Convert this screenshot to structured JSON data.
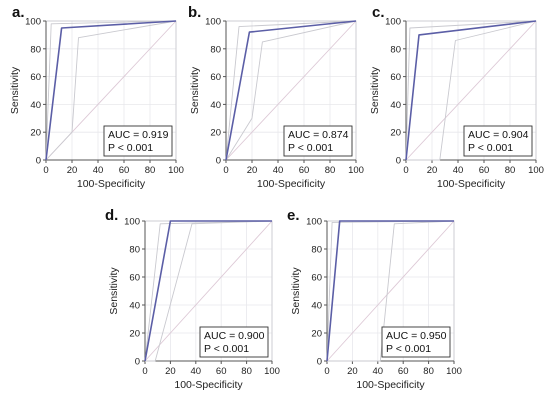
{
  "chart_data": [
    {
      "panel": "a.",
      "type": "line",
      "xlabel": "100-Specificity",
      "ylabel": "Sensitivity",
      "xlim": [
        0,
        100
      ],
      "ylim": [
        0,
        100
      ],
      "x_ticks": [
        "0",
        "20",
        "40",
        "60",
        "80",
        "100"
      ],
      "y_ticks": [
        "0",
        "20",
        "40",
        "60",
        "80",
        "100"
      ],
      "series": [
        {
          "role": "roc",
          "color": "#5b5ea6",
          "points": [
            [
              0,
              0
            ],
            [
              12,
              95
            ],
            [
              100,
              100
            ]
          ]
        },
        {
          "role": "ci-upper",
          "color": "#c9c9cf",
          "points": [
            [
              0,
              0
            ],
            [
              4,
              98
            ],
            [
              100,
              100
            ]
          ]
        },
        {
          "role": "ci-lower",
          "color": "#c9c9cf",
          "points": [
            [
              0,
              0
            ],
            [
              20,
              20
            ],
            [
              25,
              88
            ],
            [
              100,
              100
            ]
          ]
        },
        {
          "role": "reference",
          "color": "#ddc9d6",
          "points": [
            [
              0,
              0
            ],
            [
              100,
              100
            ]
          ]
        }
      ],
      "annotation": [
        "AUC = 0.919",
        "P < 0.001"
      ],
      "grid": true
    },
    {
      "panel": "b.",
      "type": "line",
      "xlabel": "100-Specificity",
      "ylabel": "Sensitivity",
      "xlim": [
        0,
        100
      ],
      "ylim": [
        0,
        100
      ],
      "x_ticks": [
        "0",
        "20",
        "40",
        "60",
        "80",
        "100"
      ],
      "y_ticks": [
        "0",
        "20",
        "40",
        "60",
        "80",
        "100"
      ],
      "series": [
        {
          "role": "roc",
          "color": "#5b5ea6",
          "points": [
            [
              0,
              0
            ],
            [
              18,
              92
            ],
            [
              100,
              100
            ]
          ]
        },
        {
          "role": "ci-upper",
          "color": "#c9c9cf",
          "points": [
            [
              0,
              0
            ],
            [
              10,
              96
            ],
            [
              100,
              100
            ]
          ]
        },
        {
          "role": "ci-lower",
          "color": "#c9c9cf",
          "points": [
            [
              0,
              0
            ],
            [
              20,
              30
            ],
            [
              28,
              85
            ],
            [
              100,
              100
            ]
          ]
        },
        {
          "role": "reference",
          "color": "#ddc9d6",
          "points": [
            [
              0,
              0
            ],
            [
              100,
              100
            ]
          ]
        }
      ],
      "annotation": [
        "AUC = 0.874",
        "P < 0.001"
      ],
      "grid": true
    },
    {
      "panel": "c.",
      "type": "line",
      "xlabel": "100-Specificity",
      "ylabel": "Sensitivity",
      "xlim": [
        0,
        100
      ],
      "ylim": [
        0,
        100
      ],
      "x_ticks": [
        "0",
        "20",
        "40",
        "60",
        "80",
        "100"
      ],
      "y_ticks": [
        "0",
        "20",
        "40",
        "60",
        "80",
        "100"
      ],
      "series": [
        {
          "role": "roc",
          "color": "#5b5ea6",
          "points": [
            [
              0,
              0
            ],
            [
              10,
              90
            ],
            [
              100,
              100
            ]
          ]
        },
        {
          "role": "ci-upper",
          "color": "#c9c9cf",
          "points": [
            [
              0,
              0
            ],
            [
              3,
              95
            ],
            [
              100,
              100
            ]
          ]
        },
        {
          "role": "ci-lower",
          "color": "#c9c9cf",
          "points": [
            [
              0,
              0
            ],
            [
              26,
              0
            ],
            [
              38,
              86
            ],
            [
              100,
              100
            ]
          ]
        },
        {
          "role": "reference",
          "color": "#ddc9d6",
          "points": [
            [
              0,
              0
            ],
            [
              100,
              100
            ]
          ]
        }
      ],
      "annotation": [
        "AUC = 0.904",
        "P < 0.001"
      ],
      "grid": true
    },
    {
      "panel": "d.",
      "type": "line",
      "xlabel": "100-Specificity",
      "ylabel": "Sensitivity",
      "xlim": [
        0,
        100
      ],
      "ylim": [
        0,
        100
      ],
      "x_ticks": [
        "0",
        "20",
        "40",
        "60",
        "80",
        "100"
      ],
      "y_ticks": [
        "0",
        "20",
        "40",
        "60",
        "80",
        "100"
      ],
      "series": [
        {
          "role": "roc",
          "color": "#5b5ea6",
          "points": [
            [
              0,
              0
            ],
            [
              20,
              100
            ],
            [
              100,
              100
            ]
          ]
        },
        {
          "role": "ci-upper",
          "color": "#c9c9cf",
          "points": [
            [
              0,
              0
            ],
            [
              12,
              98
            ],
            [
              100,
              100
            ]
          ]
        },
        {
          "role": "ci-lower",
          "color": "#c9c9cf",
          "points": [
            [
              0,
              0
            ],
            [
              8,
              0
            ],
            [
              37,
              98
            ],
            [
              100,
              100
            ]
          ]
        },
        {
          "role": "reference",
          "color": "#ddc9d6",
          "points": [
            [
              0,
              0
            ],
            [
              100,
              100
            ]
          ]
        }
      ],
      "annotation": [
        "AUC = 0.900",
        "P < 0.001"
      ],
      "grid": true
    },
    {
      "panel": "e.",
      "type": "line",
      "xlabel": "100-Specificity",
      "ylabel": "Sensitivity",
      "xlim": [
        0,
        100
      ],
      "ylim": [
        0,
        100
      ],
      "x_ticks": [
        "0",
        "20",
        "40",
        "60",
        "80",
        "100"
      ],
      "y_ticks": [
        "0",
        "20",
        "40",
        "60",
        "80",
        "100"
      ],
      "series": [
        {
          "role": "roc",
          "color": "#5b5ea6",
          "points": [
            [
              0,
              0
            ],
            [
              10,
              100
            ],
            [
              100,
              100
            ]
          ]
        },
        {
          "role": "ci-upper",
          "color": "#c9c9cf",
          "points": [
            [
              0,
              0
            ],
            [
              4,
              99
            ],
            [
              100,
              100
            ]
          ]
        },
        {
          "role": "ci-lower",
          "color": "#c9c9cf",
          "points": [
            [
              0,
              0
            ],
            [
              42,
              0
            ],
            [
              53,
              98
            ],
            [
              100,
              100
            ]
          ]
        },
        {
          "role": "reference",
          "color": "#ddc9d6",
          "points": [
            [
              0,
              0
            ],
            [
              100,
              100
            ]
          ]
        }
      ],
      "annotation": [
        "AUC = 0.950",
        "P < 0.001"
      ],
      "grid": true
    }
  ]
}
